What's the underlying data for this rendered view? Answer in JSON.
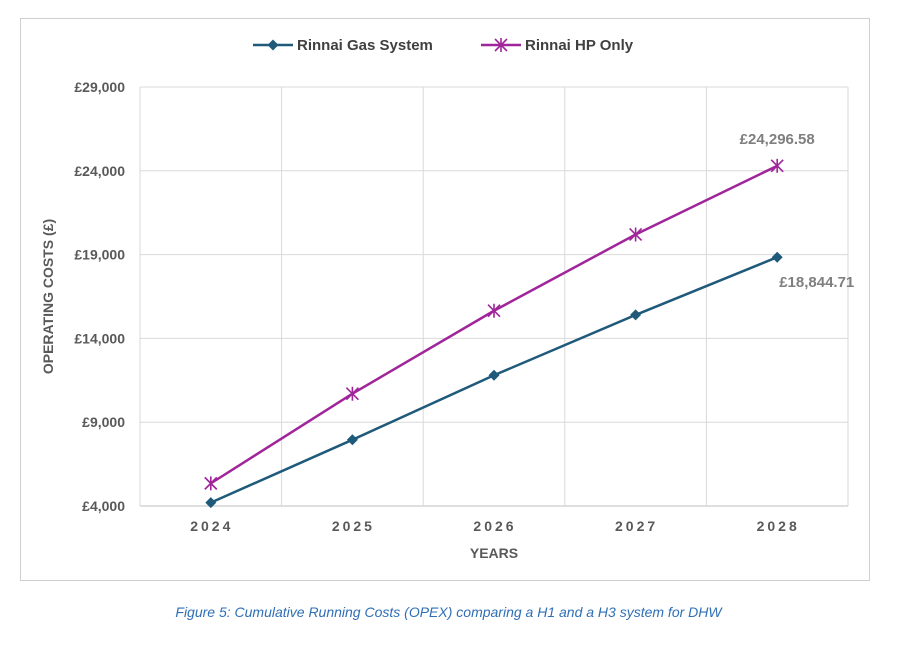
{
  "chart_data": {
    "type": "line",
    "title": "",
    "xlabel": "YEARS",
    "ylabel": "OPERATING COSTS (£)",
    "categories": [
      "2024",
      "2025",
      "2026",
      "2027",
      "2028"
    ],
    "ylim": [
      4000,
      29000
    ],
    "yticks": [
      4000,
      9000,
      14000,
      19000,
      24000,
      29000
    ],
    "ytick_labels": [
      "£4,000",
      "£9,000",
      "£14,000",
      "£19,000",
      "£24,000",
      "£29,000"
    ],
    "grid": true,
    "legend_position": "top",
    "series": [
      {
        "name": "Rinnai Gas System",
        "values": [
          4200,
          7950,
          11800,
          15400,
          18844.71
        ],
        "color": "#1f5a7a",
        "marker": "diamond",
        "end_label": "£18,844.71"
      },
      {
        "name": "Rinnai HP Only",
        "values": [
          5350,
          10700,
          15650,
          20200,
          24296.58
        ],
        "color": "#a0259a",
        "marker": "asterisk",
        "end_label": "£24,296.58"
      }
    ]
  },
  "caption": "Figure 5: Cumulative Running Costs (OPEX) comparing a H1 and a H3 system for DHW"
}
